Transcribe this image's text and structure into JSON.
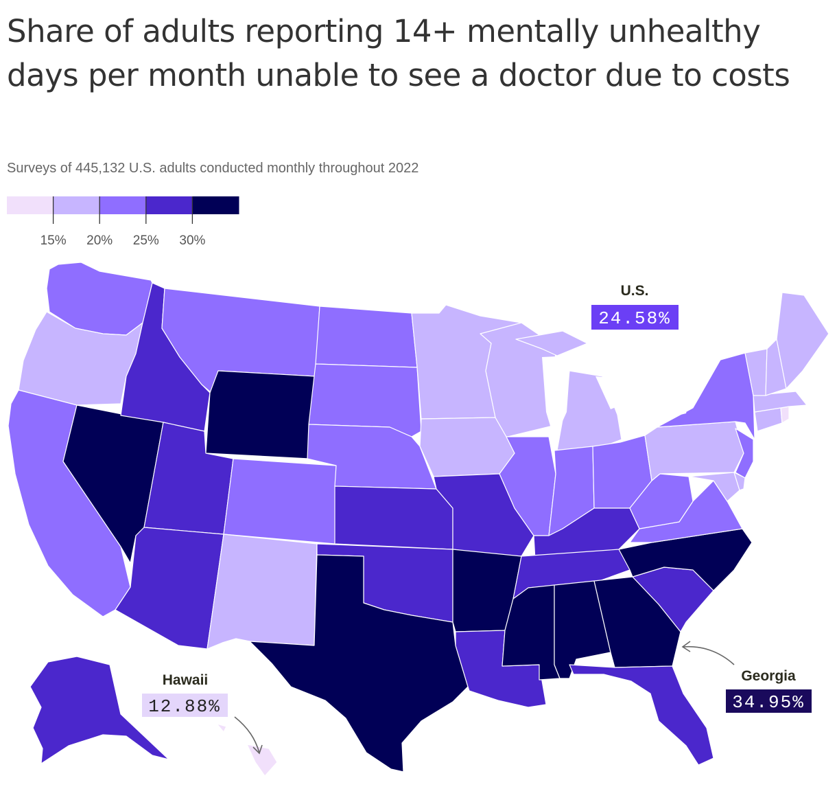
{
  "title": "Share of adults reporting 14+ mentally unhealthy days per month unable to see a doctor due to costs",
  "subtitle": "Surveys of 445,132 U.S. adults conducted monthly throughout 2022",
  "legend": {
    "colors": [
      "#f1e0fb",
      "#c7b5ff",
      "#8f6eff",
      "#4b27cc",
      "#010056"
    ],
    "ticks": [
      "15%",
      "20%",
      "25%",
      "30%"
    ]
  },
  "callouts": {
    "us": {
      "label": "U.S.",
      "value": "24.58%",
      "bg": "#6b3ff5",
      "fg": "#ffffff"
    },
    "hawaii": {
      "label": "Hawaii",
      "value": "12.88%",
      "bg": "#e4d6fb",
      "fg": "#222222"
    },
    "georgia": {
      "label": "Georgia",
      "value": "34.95%",
      "bg": "#1a0a5c",
      "fg": "#ffffff"
    }
  },
  "chart_data": {
    "type": "choropleth",
    "title": "Share of adults reporting 14+ mentally unhealthy days per month unable to see a doctor due to costs",
    "subtitle": "Surveys of 445,132 U.S. adults conducted monthly throughout 2022",
    "bins": [
      {
        "max": 15,
        "color": "#f1e0fb"
      },
      {
        "min": 15,
        "max": 20,
        "color": "#c7b5ff"
      },
      {
        "min": 20,
        "max": 25,
        "color": "#8f6eff"
      },
      {
        "min": 25,
        "max": 30,
        "color": "#4b27cc"
      },
      {
        "min": 30,
        "color": "#010056"
      }
    ],
    "labeled_values": {
      "U.S.": 24.58,
      "Hawaii": 12.88,
      "Georgia": 34.95
    },
    "states": [
      {
        "name": "Washington",
        "bin": 2
      },
      {
        "name": "Oregon",
        "bin": 1
      },
      {
        "name": "California",
        "bin": 2
      },
      {
        "name": "Nevada",
        "bin": 4
      },
      {
        "name": "Idaho",
        "bin": 3
      },
      {
        "name": "Montana",
        "bin": 2
      },
      {
        "name": "Wyoming",
        "bin": 4
      },
      {
        "name": "Utah",
        "bin": 3
      },
      {
        "name": "Arizona",
        "bin": 3
      },
      {
        "name": "Colorado",
        "bin": 2
      },
      {
        "name": "New Mexico",
        "bin": 1
      },
      {
        "name": "North Dakota",
        "bin": 2
      },
      {
        "name": "South Dakota",
        "bin": 2
      },
      {
        "name": "Nebraska",
        "bin": 2
      },
      {
        "name": "Kansas",
        "bin": 3
      },
      {
        "name": "Oklahoma",
        "bin": 3
      },
      {
        "name": "Texas",
        "bin": 4
      },
      {
        "name": "Minnesota",
        "bin": 1
      },
      {
        "name": "Iowa",
        "bin": 1
      },
      {
        "name": "Missouri",
        "bin": 3
      },
      {
        "name": "Arkansas",
        "bin": 4
      },
      {
        "name": "Louisiana",
        "bin": 3
      },
      {
        "name": "Wisconsin",
        "bin": 1
      },
      {
        "name": "Illinois",
        "bin": 2
      },
      {
        "name": "Michigan",
        "bin": 1
      },
      {
        "name": "Indiana",
        "bin": 2
      },
      {
        "name": "Ohio",
        "bin": 2
      },
      {
        "name": "Kentucky",
        "bin": 3
      },
      {
        "name": "Tennessee",
        "bin": 3
      },
      {
        "name": "Mississippi",
        "bin": 4
      },
      {
        "name": "Alabama",
        "bin": 4
      },
      {
        "name": "Georgia",
        "bin": 4
      },
      {
        "name": "Florida",
        "bin": 3
      },
      {
        "name": "South Carolina",
        "bin": 3
      },
      {
        "name": "North Carolina",
        "bin": 4
      },
      {
        "name": "Virginia",
        "bin": 2
      },
      {
        "name": "West Virginia",
        "bin": 2
      },
      {
        "name": "Pennsylvania",
        "bin": 1
      },
      {
        "name": "New York",
        "bin": 2
      },
      {
        "name": "New Jersey",
        "bin": 2
      },
      {
        "name": "Maryland",
        "bin": 1
      },
      {
        "name": "Delaware",
        "bin": 1
      },
      {
        "name": "Connecticut",
        "bin": 1
      },
      {
        "name": "Rhode Island",
        "bin": 0
      },
      {
        "name": "Massachusetts",
        "bin": 1
      },
      {
        "name": "Vermont",
        "bin": 1
      },
      {
        "name": "New Hampshire",
        "bin": 1
      },
      {
        "name": "Maine",
        "bin": 1
      },
      {
        "name": "Alaska",
        "bin": 3
      },
      {
        "name": "Hawaii",
        "bin": 0
      }
    ]
  }
}
